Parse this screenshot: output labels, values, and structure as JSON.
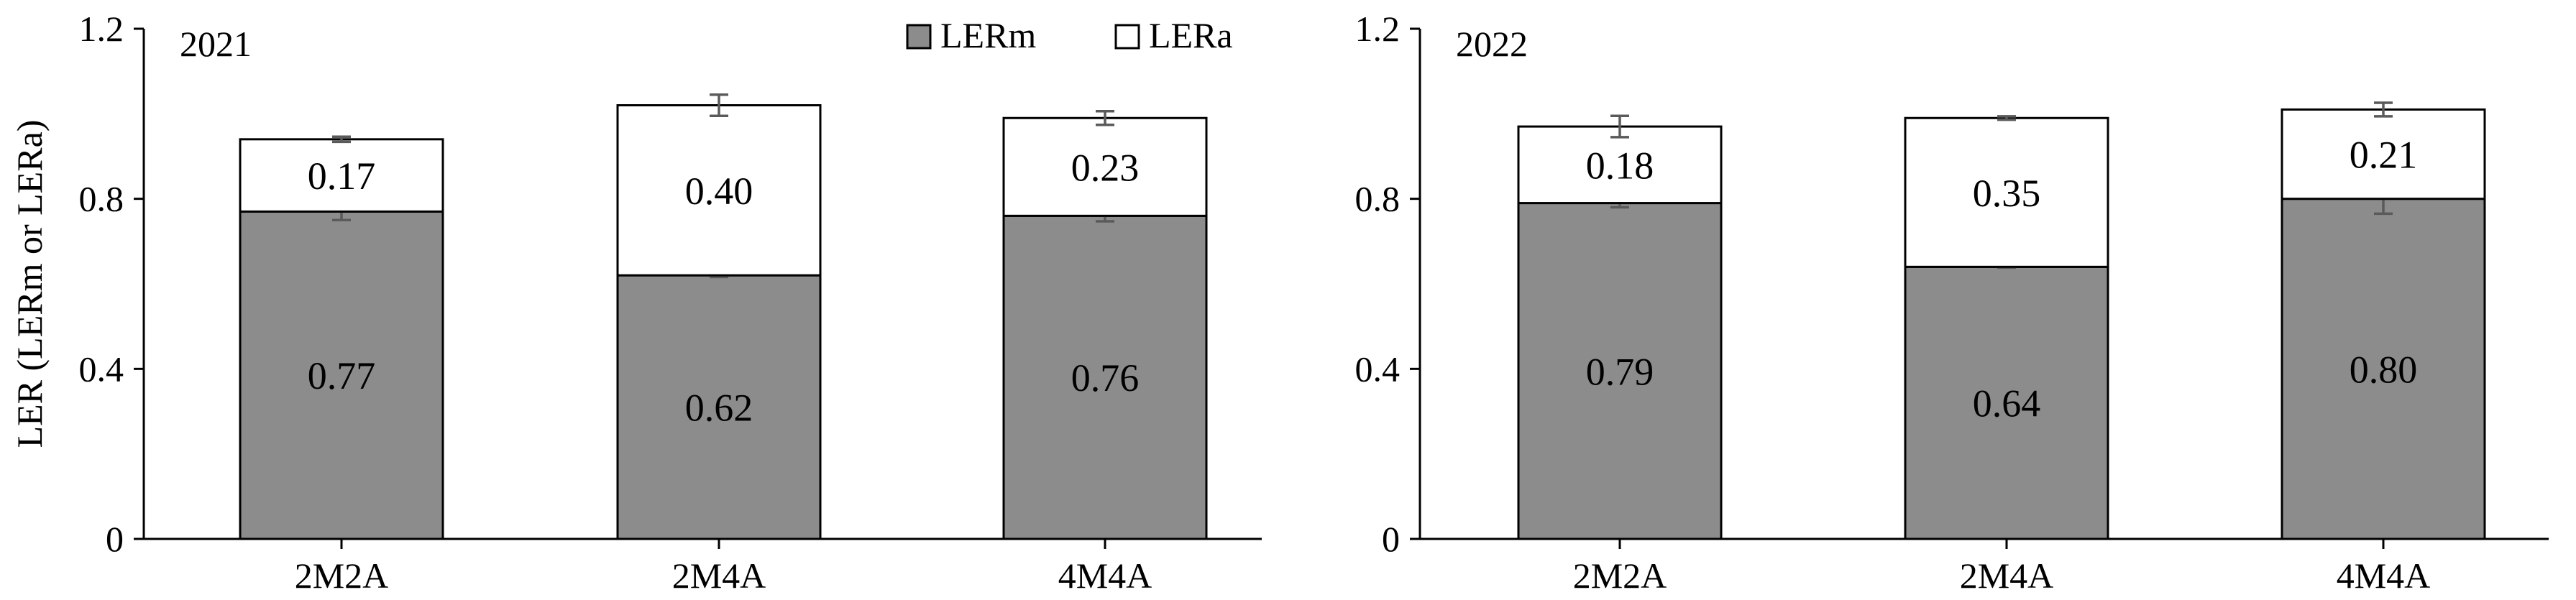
{
  "chart_data": [
    {
      "type": "bar",
      "stacked": true,
      "title": "2021",
      "ylabel": "LER (LERm or LERa)",
      "xlabel": "",
      "ylim": [
        0,
        1.2
      ],
      "yticks": [
        0,
        0.4,
        0.8,
        1.2
      ],
      "ytick_labels": [
        "0",
        "0.4",
        "0.8",
        "1.2"
      ],
      "categories": [
        "2M2A",
        "2M4A",
        "4M4A"
      ],
      "legend_position": "top-right",
      "series": [
        {
          "name": "LERm",
          "color": "#8c8c8c",
          "values": [
            0.77,
            0.62,
            0.76
          ],
          "labels": [
            "0.77",
            "0.62",
            "0.76"
          ],
          "errors": [
            0.02,
            0.004,
            0.013
          ]
        },
        {
          "name": "LERa",
          "color": "#ffffff",
          "values": [
            0.17,
            0.4,
            0.23
          ],
          "labels": [
            "0.17",
            "0.40",
            "0.23"
          ],
          "errors": [
            0.006,
            0.025,
            0.016
          ]
        }
      ]
    },
    {
      "type": "bar",
      "stacked": true,
      "title": "2022",
      "ylabel": "",
      "xlabel": "",
      "ylim": [
        0,
        1.2
      ],
      "yticks": [
        0,
        0.4,
        0.8,
        1.2
      ],
      "ytick_labels": [
        "0",
        "0.4",
        "0.8",
        "1.2"
      ],
      "categories": [
        "2M2A",
        "2M4A",
        "4M4A"
      ],
      "series": [
        {
          "name": "LERm",
          "color": "#8c8c8c",
          "values": [
            0.79,
            0.64,
            0.8
          ],
          "labels": [
            "0.79",
            "0.64",
            "0.80"
          ],
          "errors": [
            0.01,
            0.002,
            0.035
          ]
        },
        {
          "name": "LERa",
          "color": "#ffffff",
          "values": [
            0.18,
            0.35,
            0.21
          ],
          "labels": [
            "0.18",
            "0.35",
            "0.21"
          ],
          "errors": [
            0.025,
            0.004,
            0.016
          ]
        }
      ]
    }
  ]
}
